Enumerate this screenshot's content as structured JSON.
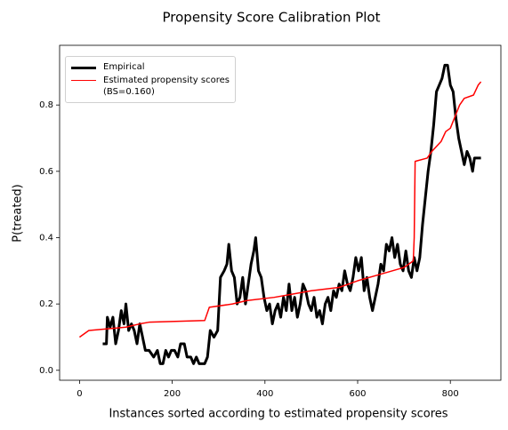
{
  "chart_data": {
    "type": "line",
    "title": "Propensity Score Calibration Plot",
    "x_label": "Instances sorted according to estimated propensity scores",
    "y_label": "P(treated)",
    "xlim": [
      -43,
      909
    ],
    "xticks": [
      0,
      200,
      400,
      600,
      800
    ],
    "ylim": [
      -0.03,
      0.98
    ],
    "yticks": [
      {
        "value": 0,
        "label": "0.0"
      },
      {
        "value": 0.2,
        "label": "0.2"
      },
      {
        "value": 0.4,
        "label": "0.4"
      },
      {
        "value": 0.6,
        "label": "0.6"
      },
      {
        "value": 0.8,
        "label": "0.8"
      }
    ],
    "legend": "upper left",
    "series": [
      {
        "name": "Empirical",
        "color": "#000000",
        "width": 3,
        "x": [
          50,
          58,
          60,
          66,
          72,
          78,
          84,
          90,
          96,
          100,
          106,
          112,
          118,
          124,
          130,
          136,
          142,
          150,
          160,
          168,
          174,
          180,
          186,
          192,
          198,
          205,
          212,
          218,
          226,
          232,
          240,
          246,
          252,
          258,
          270,
          276,
          282,
          290,
          298,
          304,
          312,
          318,
          322,
          328,
          334,
          340,
          346,
          352,
          358,
          364,
          370,
          376,
          380,
          386,
          392,
          398,
          404,
          410,
          416,
          422,
          428,
          434,
          440,
          446,
          452,
          458,
          464,
          470,
          476,
          482,
          488,
          494,
          500,
          506,
          512,
          518,
          524,
          530,
          536,
          542,
          548,
          554,
          560,
          566,
          572,
          578,
          584,
          590,
          596,
          602,
          608,
          614,
          620,
          626,
          632,
          638,
          644,
          650,
          656,
          662,
          668,
          674,
          680,
          686,
          692,
          698,
          704,
          710,
          716,
          722,
          728,
          734,
          740,
          746,
          752,
          758,
          764,
          770,
          776,
          782,
          788,
          794,
          800,
          806,
          812,
          818,
          824,
          830,
          836,
          842,
          848,
          852,
          866
        ],
        "values": [
          0.08,
          0.08,
          0.16,
          0.13,
          0.16,
          0.08,
          0.12,
          0.18,
          0.14,
          0.2,
          0.12,
          0.14,
          0.12,
          0.08,
          0.14,
          0.1,
          0.06,
          0.06,
          0.04,
          0.06,
          0.02,
          0.02,
          0.06,
          0.04,
          0.06,
          0.06,
          0.04,
          0.08,
          0.08,
          0.04,
          0.04,
          0.02,
          0.04,
          0.02,
          0.02,
          0.04,
          0.12,
          0.1,
          0.12,
          0.28,
          0.3,
          0.32,
          0.38,
          0.3,
          0.28,
          0.2,
          0.22,
          0.28,
          0.2,
          0.26,
          0.32,
          0.36,
          0.4,
          0.3,
          0.28,
          0.22,
          0.18,
          0.2,
          0.14,
          0.18,
          0.2,
          0.16,
          0.22,
          0.18,
          0.26,
          0.18,
          0.22,
          0.16,
          0.2,
          0.26,
          0.24,
          0.2,
          0.18,
          0.22,
          0.16,
          0.18,
          0.14,
          0.2,
          0.22,
          0.18,
          0.24,
          0.22,
          0.26,
          0.24,
          0.3,
          0.26,
          0.24,
          0.28,
          0.34,
          0.3,
          0.34,
          0.24,
          0.28,
          0.22,
          0.18,
          0.22,
          0.26,
          0.32,
          0.3,
          0.38,
          0.36,
          0.4,
          0.34,
          0.38,
          0.32,
          0.3,
          0.36,
          0.3,
          0.28,
          0.34,
          0.3,
          0.34,
          0.44,
          0.52,
          0.6,
          0.66,
          0.74,
          0.84,
          0.86,
          0.88,
          0.92,
          0.92,
          0.86,
          0.84,
          0.76,
          0.7,
          0.66,
          0.62,
          0.66,
          0.64,
          0.6,
          0.64,
          0.64
        ]
      },
      {
        "name": "Estimated propensity scores\n(BS=0.160)",
        "color": "#ff0000",
        "width": 1.5,
        "x": [
          0,
          10,
          20,
          60,
          100,
          130,
          150,
          270,
          280,
          330,
          360,
          420,
          460,
          500,
          560,
          600,
          650,
          700,
          720,
          722,
          724,
          750,
          760,
          780,
          790,
          800,
          820,
          830,
          850,
          860,
          866
        ],
        "values": [
          0.1,
          0.11,
          0.12,
          0.125,
          0.13,
          0.14,
          0.145,
          0.15,
          0.19,
          0.2,
          0.21,
          0.22,
          0.23,
          0.24,
          0.25,
          0.27,
          0.29,
          0.31,
          0.33,
          0.4,
          0.63,
          0.64,
          0.66,
          0.69,
          0.72,
          0.73,
          0.8,
          0.82,
          0.83,
          0.86,
          0.87
        ]
      }
    ]
  }
}
